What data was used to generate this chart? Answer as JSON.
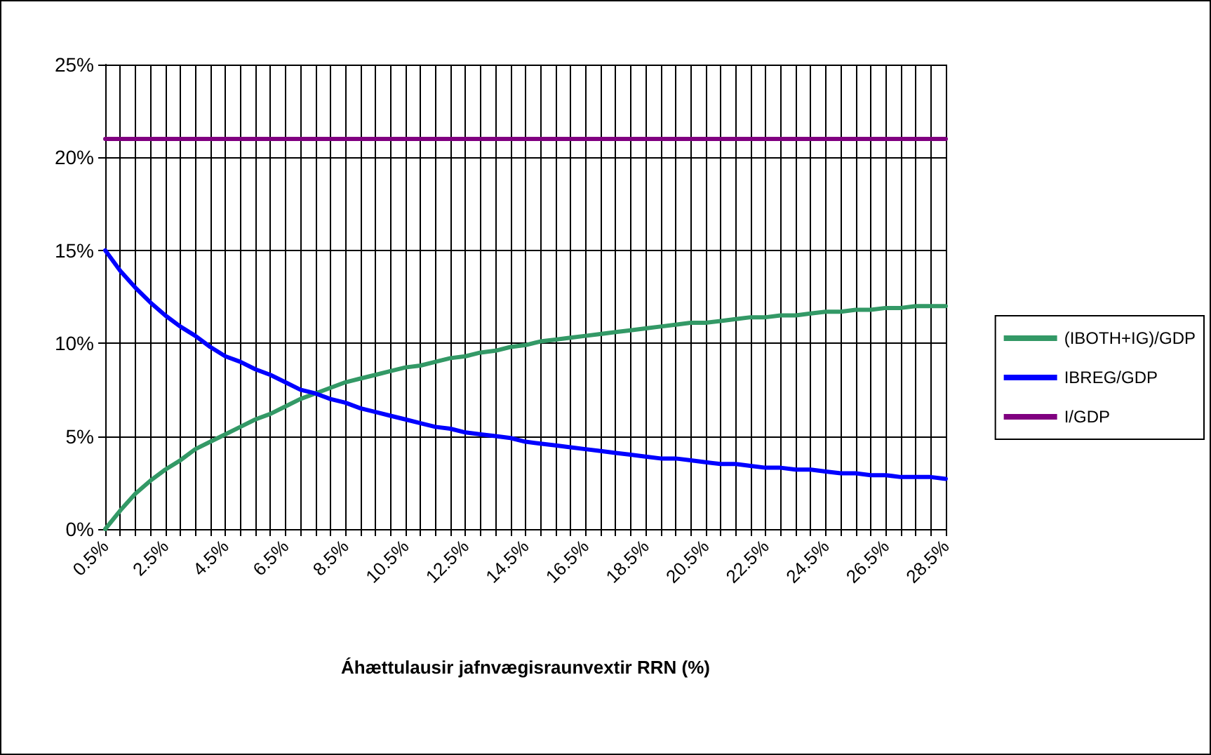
{
  "chart_data": {
    "type": "line",
    "xlabel": "Áhættulausir jafnvægisraunvextir RRN (%)",
    "categories": [
      "0.5%",
      null,
      null,
      null,
      "2.5%",
      null,
      null,
      null,
      "4.5%",
      null,
      null,
      null,
      "6.5%",
      null,
      null,
      null,
      "8.5%",
      null,
      null,
      null,
      "10.5%",
      null,
      null,
      null,
      "12.5%",
      null,
      null,
      null,
      "14.5%",
      null,
      null,
      null,
      "16.5%",
      null,
      null,
      null,
      "18.5%",
      null,
      null,
      null,
      "20.5%",
      null,
      null,
      null,
      "22.5%",
      null,
      null,
      null,
      "24.5%",
      null,
      null,
      null,
      "26.5%",
      null,
      null,
      null,
      "28.5%"
    ],
    "series": [
      {
        "name": "(IBOTH+IG)/GDP",
        "color": "#339966",
        "values": [
          0,
          1.0,
          1.9,
          2.6,
          3.2,
          3.7,
          4.3,
          4.7,
          5.1,
          5.5,
          5.9,
          6.2,
          6.6,
          7.0,
          7.3,
          7.6,
          7.9,
          8.1,
          8.3,
          8.5,
          8.7,
          8.8,
          9.0,
          9.2,
          9.3,
          9.5,
          9.6,
          9.8,
          9.9,
          10.1,
          10.2,
          10.3,
          10.4,
          10.5,
          10.6,
          10.7,
          10.8,
          10.9,
          11.0,
          11.1,
          11.1,
          11.2,
          11.3,
          11.4,
          11.4,
          11.5,
          11.5,
          11.6,
          11.7,
          11.7,
          11.8,
          11.8,
          11.9,
          11.9,
          12.0,
          12.0,
          12.0
        ]
      },
      {
        "name": "IBREG/GDP",
        "color": "#0000ff",
        "values": [
          15.0,
          13.9,
          13.0,
          12.2,
          11.5,
          10.9,
          10.4,
          9.8,
          9.3,
          9.0,
          8.6,
          8.3,
          7.9,
          7.5,
          7.3,
          7.0,
          6.8,
          6.5,
          6.3,
          6.1,
          5.9,
          5.7,
          5.5,
          5.4,
          5.2,
          5.1,
          5.0,
          4.9,
          4.7,
          4.6,
          4.5,
          4.4,
          4.3,
          4.2,
          4.1,
          4.0,
          3.9,
          3.8,
          3.8,
          3.7,
          3.6,
          3.5,
          3.5,
          3.4,
          3.3,
          3.3,
          3.2,
          3.2,
          3.1,
          3.0,
          3.0,
          2.9,
          2.9,
          2.8,
          2.8,
          2.8,
          2.7
        ]
      },
      {
        "name": "I/GDP",
        "color": "#800080",
        "values": [
          21,
          21,
          21,
          21,
          21,
          21,
          21,
          21,
          21,
          21,
          21,
          21,
          21,
          21,
          21,
          21,
          21,
          21,
          21,
          21,
          21,
          21,
          21,
          21,
          21,
          21,
          21,
          21,
          21,
          21,
          21,
          21,
          21,
          21,
          21,
          21,
          21,
          21,
          21,
          21,
          21,
          21,
          21,
          21,
          21,
          21,
          21,
          21,
          21,
          21,
          21,
          21,
          21,
          21,
          21,
          21,
          21
        ]
      }
    ],
    "ylim": [
      0,
      25
    ],
    "yticks": [
      {
        "value": 0,
        "label": "0%"
      },
      {
        "value": 5,
        "label": "5%"
      },
      {
        "value": 10,
        "label": "10%"
      },
      {
        "value": 15,
        "label": "15%"
      },
      {
        "value": 20,
        "label": "20%"
      },
      {
        "value": 25,
        "label": "25%"
      }
    ],
    "grid": true,
    "legend": "right",
    "marker": "none",
    "line_style": "solid"
  }
}
